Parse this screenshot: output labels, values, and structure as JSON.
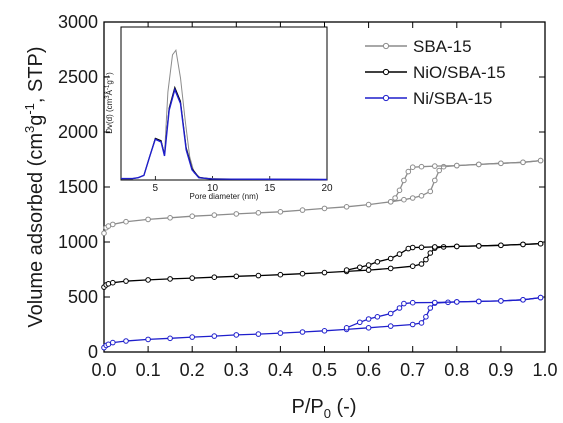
{
  "chart_data": [
    {
      "type": "line",
      "title": "",
      "xlabel": "P/P",
      "xlabel_sub": "0",
      "xlabel_suffix": " (-)",
      "ylabel": "Volume adsorbed (cm³g⁻¹, STP)",
      "xlim": [
        0.0,
        1.0
      ],
      "ylim": [
        0,
        3000
      ],
      "x_ticks": [
        "0.0",
        "0.1",
        "0.2",
        "0.3",
        "0.4",
        "0.5",
        "0.6",
        "0.7",
        "0.8",
        "0.9",
        "1.0"
      ],
      "y_ticks": [
        "0",
        "500",
        "1000",
        "1500",
        "2000",
        "2500",
        "3000"
      ],
      "grid": false,
      "legend_position": "top-right",
      "series": [
        {
          "name": "SBA-15",
          "color": "#8c8c8c",
          "marker": "circle",
          "adsorption": [
            [
              0.0,
              1080
            ],
            [
              0.005,
              1130
            ],
            [
              0.01,
              1145
            ],
            [
              0.02,
              1160
            ],
            [
              0.05,
              1185
            ],
            [
              0.1,
              1205
            ],
            [
              0.15,
              1220
            ],
            [
              0.2,
              1235
            ],
            [
              0.25,
              1245
            ],
            [
              0.3,
              1255
            ],
            [
              0.35,
              1265
            ],
            [
              0.4,
              1275
            ],
            [
              0.45,
              1290
            ],
            [
              0.5,
              1305
            ],
            [
              0.55,
              1320
            ],
            [
              0.6,
              1340
            ],
            [
              0.65,
              1365
            ],
            [
              0.68,
              1385
            ],
            [
              0.7,
              1400
            ],
            [
              0.72,
              1420
            ],
            [
              0.74,
              1460
            ],
            [
              0.75,
              1560
            ],
            [
              0.76,
              1650
            ],
            [
              0.77,
              1685
            ],
            [
              0.8,
              1695
            ],
            [
              0.85,
              1705
            ],
            [
              0.9,
              1715
            ],
            [
              0.95,
              1725
            ],
            [
              0.99,
              1740
            ]
          ],
          "desorption": [
            [
              0.99,
              1740
            ],
            [
              0.95,
              1725
            ],
            [
              0.9,
              1715
            ],
            [
              0.85,
              1705
            ],
            [
              0.8,
              1695
            ],
            [
              0.75,
              1690
            ],
            [
              0.72,
              1685
            ],
            [
              0.7,
              1680
            ],
            [
              0.69,
              1640
            ],
            [
              0.68,
              1560
            ],
            [
              0.67,
              1470
            ],
            [
              0.66,
              1400
            ],
            [
              0.65,
              1365
            ]
          ]
        },
        {
          "name": "NiO/SBA-15",
          "color": "#000000",
          "marker": "circle",
          "adsorption": [
            [
              0.0,
              590
            ],
            [
              0.005,
              610
            ],
            [
              0.01,
              620
            ],
            [
              0.02,
              630
            ],
            [
              0.05,
              645
            ],
            [
              0.1,
              655
            ],
            [
              0.15,
              665
            ],
            [
              0.2,
              672
            ],
            [
              0.25,
              680
            ],
            [
              0.3,
              688
            ],
            [
              0.35,
              695
            ],
            [
              0.4,
              703
            ],
            [
              0.45,
              712
            ],
            [
              0.5,
              722
            ],
            [
              0.55,
              733
            ],
            [
              0.6,
              745
            ],
            [
              0.65,
              760
            ],
            [
              0.7,
              780
            ],
            [
              0.72,
              800
            ],
            [
              0.73,
              840
            ],
            [
              0.74,
              900
            ],
            [
              0.75,
              945
            ],
            [
              0.77,
              955
            ],
            [
              0.8,
              960
            ],
            [
              0.85,
              965
            ],
            [
              0.9,
              970
            ],
            [
              0.95,
              978
            ],
            [
              0.99,
              985
            ]
          ],
          "desorption": [
            [
              0.99,
              985
            ],
            [
              0.95,
              978
            ],
            [
              0.9,
              970
            ],
            [
              0.85,
              965
            ],
            [
              0.8,
              960
            ],
            [
              0.75,
              955
            ],
            [
              0.72,
              952
            ],
            [
              0.7,
              950
            ],
            [
              0.69,
              940
            ],
            [
              0.67,
              890
            ],
            [
              0.65,
              850
            ],
            [
              0.62,
              820
            ],
            [
              0.6,
              790
            ],
            [
              0.58,
              770
            ],
            [
              0.55,
              745
            ]
          ]
        },
        {
          "name": "Ni/SBA-15",
          "color": "#1f1fcc",
          "marker": "circle",
          "adsorption": [
            [
              0.0,
              40
            ],
            [
              0.005,
              60
            ],
            [
              0.01,
              70
            ],
            [
              0.02,
              85
            ],
            [
              0.05,
              100
            ],
            [
              0.1,
              115
            ],
            [
              0.15,
              125
            ],
            [
              0.2,
              135
            ],
            [
              0.25,
              145
            ],
            [
              0.3,
              155
            ],
            [
              0.35,
              163
            ],
            [
              0.4,
              172
            ],
            [
              0.45,
              182
            ],
            [
              0.5,
              193
            ],
            [
              0.55,
              205
            ],
            [
              0.6,
              220
            ],
            [
              0.65,
              235
            ],
            [
              0.7,
              250
            ],
            [
              0.72,
              265
            ],
            [
              0.73,
              320
            ],
            [
              0.74,
              400
            ],
            [
              0.75,
              445
            ],
            [
              0.78,
              452
            ],
            [
              0.8,
              455
            ],
            [
              0.85,
              460
            ],
            [
              0.9,
              465
            ],
            [
              0.95,
              475
            ],
            [
              0.99,
              495
            ]
          ],
          "desorption": [
            [
              0.99,
              495
            ],
            [
              0.95,
              475
            ],
            [
              0.9,
              465
            ],
            [
              0.85,
              460
            ],
            [
              0.8,
              455
            ],
            [
              0.75,
              450
            ],
            [
              0.7,
              448
            ],
            [
              0.68,
              440
            ],
            [
              0.67,
              400
            ],
            [
              0.65,
              350
            ],
            [
              0.62,
              320
            ],
            [
              0.6,
              300
            ],
            [
              0.58,
              270
            ],
            [
              0.55,
              220
            ]
          ]
        }
      ]
    },
    {
      "type": "line",
      "title": "",
      "xlabel": "Pore diameter (nm)",
      "ylabel": "Dv(d) (cm³Å⁻¹g⁻¹)",
      "xlim": [
        2,
        20
      ],
      "ylim": [
        0,
        3.3
      ],
      "x_ticks": [
        "5",
        "10",
        "15",
        "20"
      ],
      "grid": false,
      "series": [
        {
          "color": "#8c8c8c",
          "points": [
            [
              2,
              0.03
            ],
            [
              3,
              0.03
            ],
            [
              3.5,
              0.05
            ],
            [
              4,
              0.1
            ],
            [
              4.5,
              0.5
            ],
            [
              5,
              0.9
            ],
            [
              5.5,
              0.85
            ],
            [
              5.8,
              0.55
            ],
            [
              6.1,
              1.9
            ],
            [
              6.5,
              2.7
            ],
            [
              6.8,
              2.8
            ],
            [
              7.2,
              2.2
            ],
            [
              7.6,
              1.3
            ],
            [
              8,
              0.5
            ],
            [
              8.4,
              0.15
            ],
            [
              9,
              0.04
            ],
            [
              12,
              0.02
            ],
            [
              20,
              0.01
            ]
          ]
        },
        {
          "color": "#000000",
          "points": [
            [
              2,
              0.03
            ],
            [
              3,
              0.03
            ],
            [
              3.5,
              0.05
            ],
            [
              4,
              0.1
            ],
            [
              4.5,
              0.5
            ],
            [
              5,
              0.9
            ],
            [
              5.5,
              0.85
            ],
            [
              5.8,
              0.55
            ],
            [
              6.2,
              1.55
            ],
            [
              6.7,
              2.0
            ],
            [
              7.2,
              1.7
            ],
            [
              7.7,
              0.7
            ],
            [
              8.2,
              0.25
            ],
            [
              8.8,
              0.06
            ],
            [
              10,
              0.02
            ],
            [
              20,
              0.01
            ]
          ]
        },
        {
          "color": "#1f1fcc",
          "points": [
            [
              2,
              0.03
            ],
            [
              3,
              0.03
            ],
            [
              3.5,
              0.05
            ],
            [
              4,
              0.1
            ],
            [
              4.5,
              0.5
            ],
            [
              5,
              0.88
            ],
            [
              5.5,
              0.82
            ],
            [
              5.8,
              0.52
            ],
            [
              6.2,
              1.5
            ],
            [
              6.7,
              1.95
            ],
            [
              7.2,
              1.65
            ],
            [
              7.7,
              0.65
            ],
            [
              8.2,
              0.22
            ],
            [
              8.8,
              0.05
            ],
            [
              10,
              0.02
            ],
            [
              20,
              0.01
            ]
          ]
        }
      ]
    }
  ]
}
